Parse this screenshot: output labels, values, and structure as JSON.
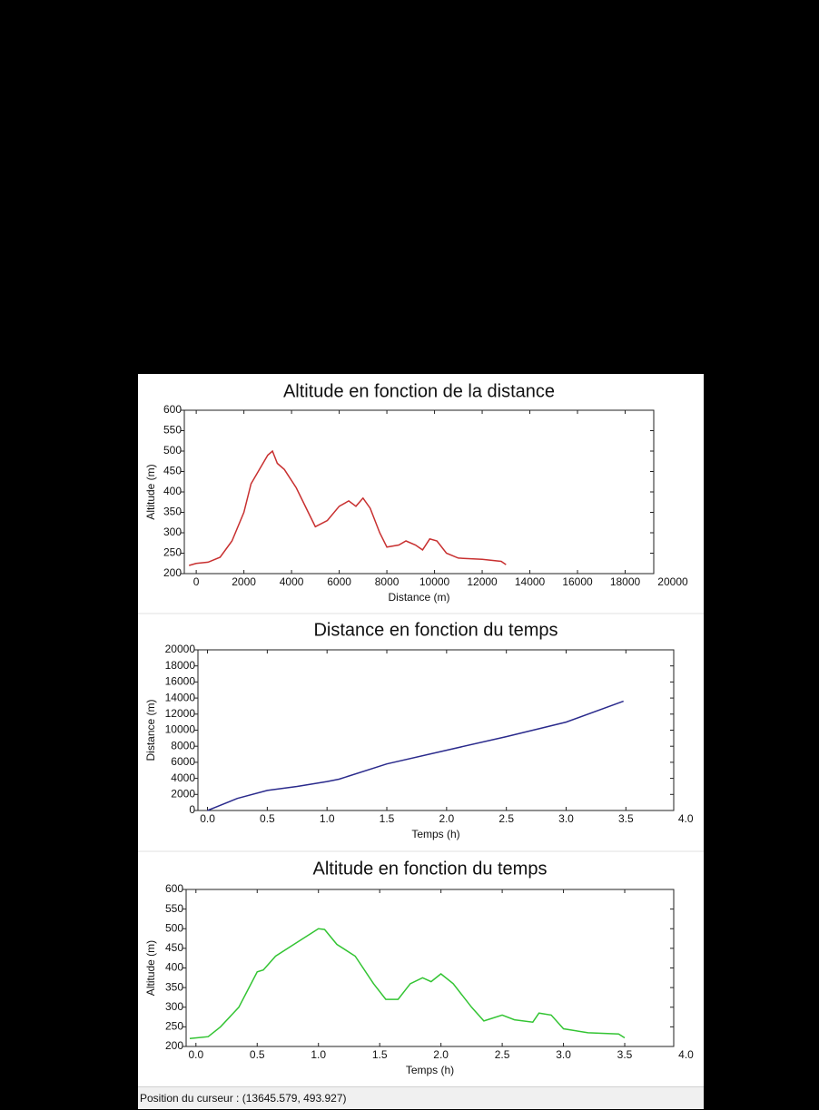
{
  "chart_data": [
    {
      "type": "line",
      "title": "Altitude en fonction de la distance",
      "x_label": "Distance (m)",
      "y_label": "Altitude (m)",
      "color": "#c83030",
      "x": [
        -300,
        0,
        500,
        1000,
        1500,
        2000,
        2300,
        2700,
        3000,
        3200,
        3400,
        3700,
        4200,
        4700,
        5000,
        5500,
        6000,
        6400,
        6700,
        7000,
        7300,
        7700,
        8000,
        8500,
        8800,
        9200,
        9500,
        9800,
        10100,
        10500,
        11000,
        12000,
        12800,
        13000
      ],
      "values": [
        220,
        225,
        228,
        240,
        280,
        350,
        420,
        460,
        490,
        500,
        470,
        455,
        410,
        350,
        315,
        330,
        365,
        378,
        365,
        385,
        360,
        300,
        265,
        270,
        280,
        270,
        258,
        285,
        280,
        250,
        238,
        235,
        230,
        222
      ],
      "xlim": [
        -500,
        19200
      ],
      "xticks": [
        0,
        2000,
        4000,
        6000,
        8000,
        10000,
        12000,
        14000,
        16000,
        18000,
        20000
      ],
      "ylim": [
        200,
        600
      ],
      "yticks": [
        200,
        250,
        300,
        350,
        400,
        450,
        500,
        550,
        600
      ]
    },
    {
      "type": "line",
      "title": "Distance en fonction du temps",
      "x_label": "Temps (h)",
      "y_label": "Distance (m)",
      "color": "#2a2a8c",
      "x": [
        0,
        0.25,
        0.5,
        0.75,
        1.0,
        1.1,
        1.5,
        2.0,
        2.5,
        3.0,
        3.48
      ],
      "values": [
        0,
        1500,
        2500,
        3000,
        3600,
        3900,
        5800,
        7500,
        9200,
        11000,
        13600
      ],
      "xlim": [
        -0.08,
        3.9
      ],
      "xticks": [
        {
          "value": 0,
          "label": "0.0"
        },
        0.5,
        {
          "value": 1,
          "label": "1.0"
        },
        1.5,
        {
          "value": 2,
          "label": "2.0"
        },
        2.5,
        {
          "value": 3,
          "label": "3.0"
        },
        3.5,
        {
          "value": 4,
          "label": "4.0"
        }
      ],
      "ylim": [
        0,
        20000
      ],
      "yticks": [
        0,
        2000,
        4000,
        6000,
        8000,
        10000,
        12000,
        14000,
        16000,
        18000,
        20000
      ]
    },
    {
      "type": "line",
      "title": "Altitude en fonction du temps",
      "x_label": "Temps (h)",
      "y_label": "Altitude (m)",
      "color": "#33c433",
      "x": [
        -0.05,
        0.1,
        0.2,
        0.35,
        0.5,
        0.55,
        0.65,
        0.8,
        0.9,
        1.0,
        1.05,
        1.15,
        1.3,
        1.45,
        1.55,
        1.65,
        1.75,
        1.85,
        1.92,
        2.0,
        2.1,
        2.25,
        2.35,
        2.5,
        2.6,
        2.75,
        2.8,
        2.9,
        3.0,
        3.2,
        3.45,
        3.5
      ],
      "values": [
        220,
        225,
        250,
        300,
        390,
        395,
        430,
        460,
        480,
        500,
        498,
        460,
        430,
        360,
        320,
        320,
        360,
        375,
        365,
        385,
        360,
        300,
        265,
        280,
        268,
        262,
        285,
        280,
        245,
        235,
        232,
        222
      ],
      "xlim": [
        -0.08,
        3.9
      ],
      "xticks": [
        {
          "value": 0,
          "label": "0.0"
        },
        0.5,
        {
          "value": 1,
          "label": "1.0"
        },
        1.5,
        {
          "value": 2,
          "label": "2.0"
        },
        2.5,
        {
          "value": 3,
          "label": "3.0"
        },
        3.5,
        {
          "value": 4,
          "label": "4.0"
        }
      ],
      "ylim": [
        200,
        600
      ],
      "yticks": [
        200,
        250,
        300,
        350,
        400,
        450,
        500,
        550,
        600
      ]
    }
  ],
  "status_bar": "Position du curseur : (13645.579, 493.927)"
}
